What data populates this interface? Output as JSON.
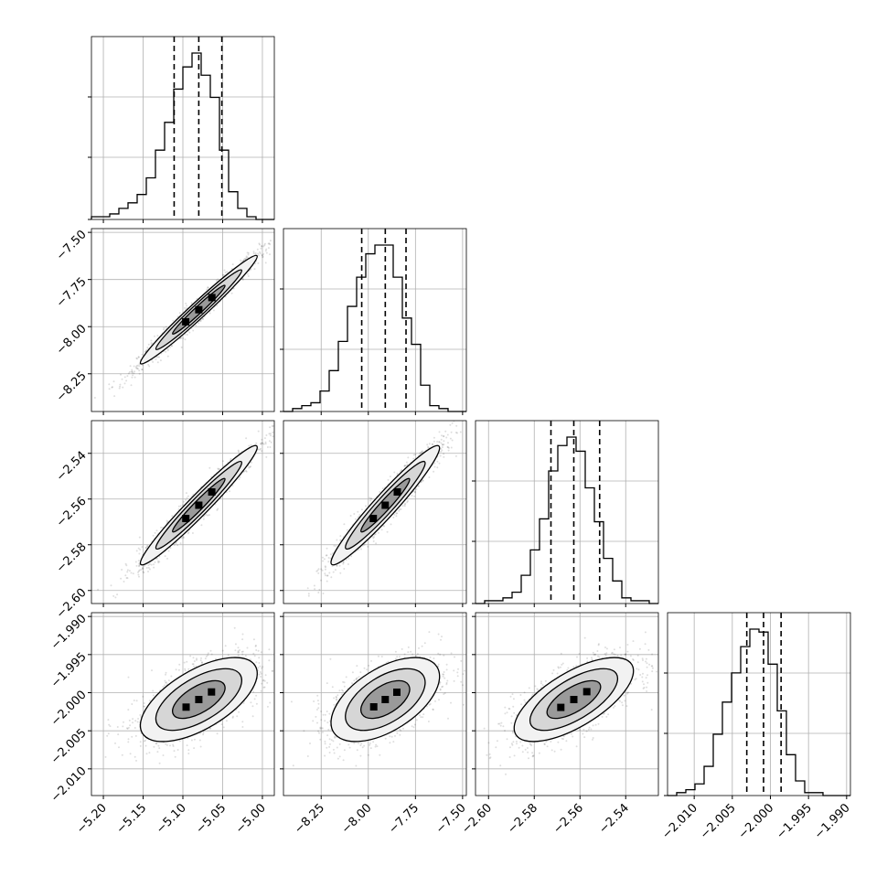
{
  "chart_data": {
    "type": "corner",
    "grid": true,
    "variables": [
      {
        "range": [
          -5.215,
          -4.985
        ],
        "ticks": [
          -5.2,
          -5.15,
          -5.1,
          -5.05,
          -5.0
        ],
        "tick_labels": [
          "−5.20",
          "−5.15",
          "−5.10",
          "−5.05",
          "−5.00"
        ],
        "quantiles": [
          -5.111,
          -5.08,
          -5.051
        ],
        "hist": [
          1,
          1,
          2,
          4,
          6,
          9,
          15,
          25,
          35,
          47,
          55,
          60,
          52,
          44,
          25,
          10,
          4,
          1,
          0,
          0
        ]
      },
      {
        "range": [
          -8.45,
          -7.48
        ],
        "ticks": [
          -8.25,
          -8.0,
          -7.75,
          -7.5
        ],
        "tick_labels": [
          "−8.25",
          "−8.00",
          "−7.75",
          "−7.50"
        ],
        "quantiles": [
          -8.035,
          -7.91,
          -7.8
        ],
        "hist": [
          0,
          1,
          2,
          3,
          7,
          14,
          24,
          36,
          46,
          54,
          57,
          57,
          46,
          32,
          23,
          9,
          2,
          1,
          0,
          0
        ]
      },
      {
        "range": [
          -2.6057,
          -2.5257
        ],
        "ticks": [
          -2.6,
          -2.58,
          -2.56,
          -2.54
        ],
        "tick_labels": [
          "−2.60",
          "−2.58",
          "−2.56",
          "−2.54"
        ],
        "quantiles": [
          -2.5727,
          -2.5627,
          -2.5514
        ],
        "hist": [
          0,
          1,
          1,
          2,
          4,
          10,
          19,
          30,
          47,
          56,
          59,
          54,
          41,
          29,
          16,
          8,
          2,
          1,
          1,
          0
        ]
      },
      {
        "range": [
          -2.0135,
          -1.9895
        ],
        "ticks": [
          -2.01,
          -2.005,
          -2.0,
          -1.995,
          -1.99
        ],
        "tick_labels": [
          "−2.010",
          "−2.005",
          "−2.000",
          "−1.995",
          "−1.990"
        ],
        "quantiles": [
          -2.0031,
          -2.0009,
          -1.9986
        ],
        "hist": [
          0,
          1,
          2,
          4,
          10,
          21,
          32,
          42,
          51,
          57,
          56,
          45,
          29,
          14,
          5,
          1,
          1,
          0,
          0,
          0
        ]
      }
    ],
    "correlations": {
      "1,0": 0.98,
      "2,0": 0.97,
      "2,1": 0.96,
      "3,0": 0.62,
      "3,1": 0.55,
      "3,2": 0.68
    }
  }
}
